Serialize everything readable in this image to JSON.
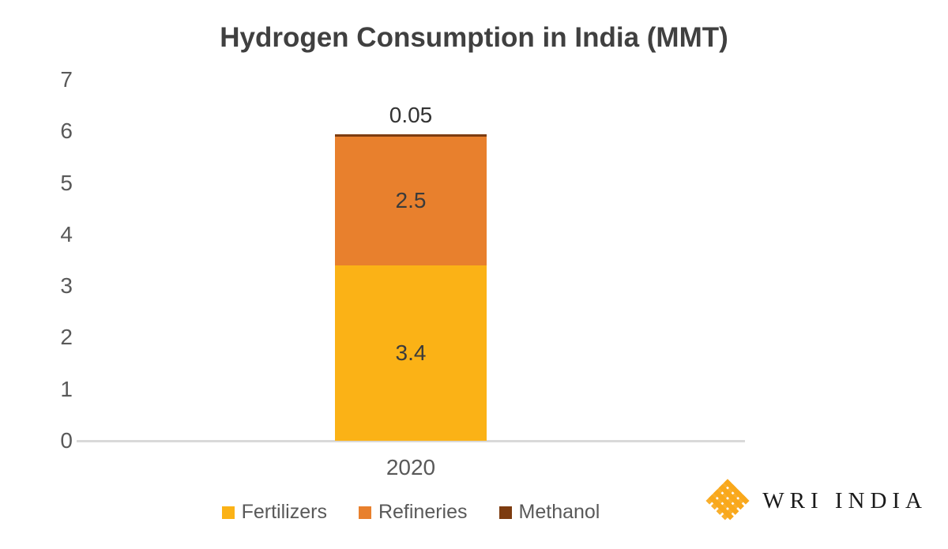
{
  "title": "Hydrogen Consumption in India (MMT)",
  "chart_data": {
    "type": "bar",
    "stacked": true,
    "title": "Hydrogen Consumption in India (MMT)",
    "categories": [
      "2020"
    ],
    "series": [
      {
        "name": "Fertilizers",
        "values": [
          3.4
        ],
        "label": "3.4",
        "color": "#FBB216"
      },
      {
        "name": "Refineries",
        "values": [
          2.5
        ],
        "label": "2.5",
        "color": "#E8802D"
      },
      {
        "name": "Methanol",
        "values": [
          0.05
        ],
        "label": "0.05",
        "color": "#7D3C10"
      }
    ],
    "xlabel": "",
    "ylabel": "",
    "ylim": [
      0,
      7
    ],
    "yticks": [
      0,
      1,
      2,
      3,
      4,
      5,
      6,
      7
    ],
    "grid": false,
    "legend_position": "bottom"
  },
  "footer": {
    "logo_text": "WRI INDIA",
    "logo_icon": "wri-woven-diamond-icon",
    "logo_gold": "#F9A81B"
  },
  "colors": {
    "background": "#FFFFFF",
    "title_text": "#404040",
    "axis_text": "#595959",
    "value_label_text": "#3B3B3B",
    "axis_line": "#D9D9D9"
  }
}
